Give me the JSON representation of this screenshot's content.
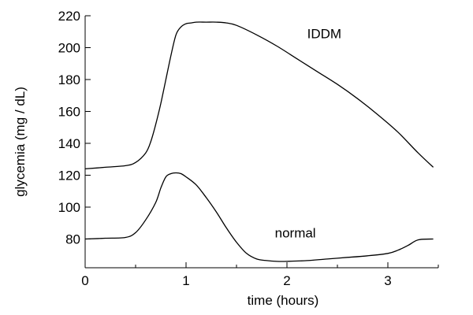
{
  "chart_data": {
    "type": "line",
    "xlabel": "time (hours)",
    "ylabel": "glycemia (mg / dL)",
    "xlim": [
      0,
      3.5
    ],
    "ylim": [
      62,
      220
    ],
    "xticks": [
      0,
      1,
      2,
      3
    ],
    "xminor": [
      0.5,
      1.5,
      2.5,
      3.5
    ],
    "yticks": [
      80,
      100,
      120,
      140,
      160,
      180,
      200,
      220
    ],
    "grid": false,
    "series": [
      {
        "name": "IDDM",
        "x": [
          0,
          0.2,
          0.4,
          0.5,
          0.6,
          0.65,
          0.7,
          0.75,
          0.8,
          0.85,
          0.9,
          0.95,
          1.0,
          1.05,
          1.1,
          1.2,
          1.3,
          1.4,
          1.5,
          1.7,
          1.9,
          2.1,
          2.3,
          2.5,
          2.7,
          2.9,
          3.1,
          3.3,
          3.45
        ],
        "values": [
          124,
          125,
          126,
          128,
          134,
          141,
          152,
          165,
          180,
          195,
          208,
          213,
          215,
          215.5,
          216,
          216,
          216,
          215.5,
          214,
          208,
          201,
          193,
          185,
          177,
          168,
          158,
          147,
          134,
          125
        ]
      },
      {
        "name": "normal",
        "x": [
          0,
          0.2,
          0.4,
          0.5,
          0.6,
          0.7,
          0.75,
          0.8,
          0.85,
          0.9,
          0.95,
          1.0,
          1.1,
          1.2,
          1.3,
          1.4,
          1.5,
          1.6,
          1.7,
          1.8,
          1.9,
          2.0,
          2.2,
          2.4,
          2.6,
          2.8,
          3.0,
          3.1,
          3.2,
          3.3,
          3.45
        ],
        "values": [
          80,
          80.5,
          81,
          84,
          92,
          103,
          112,
          119,
          121,
          121.5,
          121,
          119,
          114,
          106,
          97,
          87,
          78,
          71,
          67.5,
          66.5,
          66,
          66,
          66.5,
          67.5,
          68.5,
          69.5,
          71,
          73,
          76,
          79.5,
          80
        ]
      }
    ],
    "annotations": [
      {
        "text": "IDDM",
        "x": 2.2,
        "y": 206
      },
      {
        "text": "normal",
        "x": 1.88,
        "y": 81
      }
    ]
  }
}
